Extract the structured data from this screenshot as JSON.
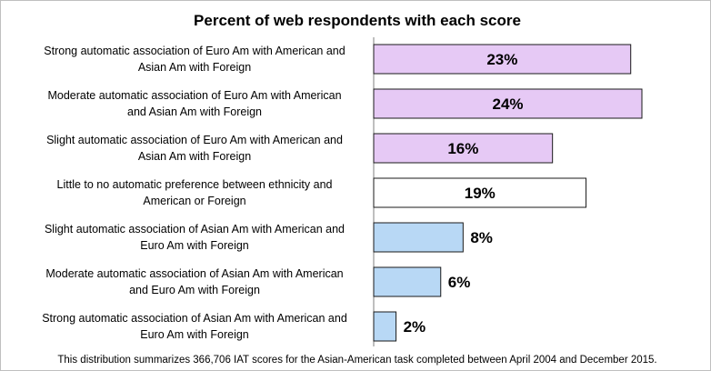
{
  "chart_data": {
    "type": "bar",
    "orientation": "horizontal",
    "title": "Percent of web respondents with each score",
    "categories": [
      [
        "Strong automatic association of Euro Am with American and",
        "Asian Am with Foreign"
      ],
      [
        "Moderate automatic association of Euro Am with American",
        "and Asian Am with Foreign"
      ],
      [
        "Slight automatic association of Euro Am with American and",
        "Asian Am with Foreign"
      ],
      [
        "Little to no automatic preference between ethnicity and",
        "American or Foreign"
      ],
      [
        "Slight automatic association of Asian Am with American and",
        "Euro Am with Foreign"
      ],
      [
        "Moderate automatic association of Asian Am with American",
        "and Euro Am with Foreign"
      ],
      [
        "Strong automatic association of Asian Am with American and",
        "Euro Am with Foreign"
      ]
    ],
    "values": [
      23,
      24,
      16,
      19,
      8,
      6,
      2
    ],
    "value_labels": [
      "23%",
      "24%",
      "16%",
      "19%",
      "8%",
      "6%",
      "2%"
    ],
    "bar_colors": [
      "#e6c9f5",
      "#e6c9f5",
      "#e6c9f5",
      "#ffffff",
      "#b8d8f5",
      "#b8d8f5",
      "#b8d8f5"
    ],
    "xlim": [
      0,
      24
    ],
    "grid": false,
    "legend": "none",
    "footnote": "This distribution summarizes 366,706 IAT scores for the Asian-American  task completed between April 2004 and December 2015."
  }
}
